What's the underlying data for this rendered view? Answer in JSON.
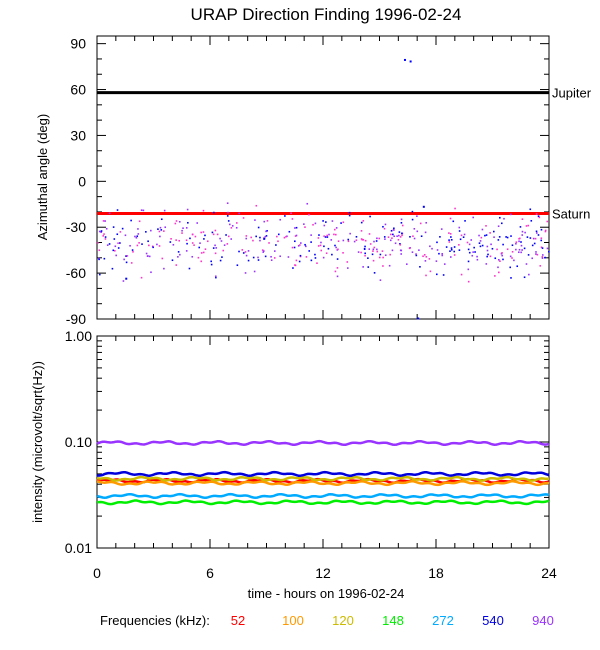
{
  "title": "URAP Direction Finding  1996-02-24",
  "xlabel": "time - hours on 1996-02-24",
  "legend_label": "Frequencies (kHz):",
  "chart_data": [
    {
      "type": "scatter",
      "ylabel": "Azimuthal angle (deg)",
      "xlim": [
        0,
        24
      ],
      "ylim": [
        -90,
        95
      ],
      "yticks": [
        90,
        60,
        30,
        0,
        -30,
        -60,
        -90
      ],
      "reference_lines": [
        {
          "name": "Jupiter",
          "y": 58,
          "color": "#000000"
        },
        {
          "name": "Saturn",
          "y": -21,
          "color": "#ff0000"
        }
      ],
      "notable_points": [
        {
          "x": 16.3,
          "y": 80
        },
        {
          "x": 16.6,
          "y": 79
        },
        {
          "x": 17.3,
          "y": -16
        },
        {
          "x": 1.5,
          "y": -63
        },
        {
          "x": 17.0,
          "y": -89
        }
      ],
      "scatter_band": {
        "y_min": -55,
        "y_max": -25,
        "mean": -40
      },
      "point_colors": [
        "#0000ff",
        "#9933ff",
        "#ff33cc"
      ]
    },
    {
      "type": "line",
      "ylabel": "intensity (microvolt/sqrt(Hz))",
      "xlim": [
        0,
        24
      ],
      "ylim": [
        0.01,
        1.0
      ],
      "yscale": "log",
      "yticks": [
        "1.00",
        "0.10",
        "0.01"
      ],
      "xticks": [
        0,
        6,
        12,
        18,
        24
      ],
      "series": [
        {
          "name": "52",
          "color": "#ff0000",
          "level": 0.043
        },
        {
          "name": "100",
          "color": "#ff9900",
          "level": 0.041
        },
        {
          "name": "120",
          "color": "#ccbb00",
          "level": 0.045
        },
        {
          "name": "148",
          "color": "#00ee00",
          "level": 0.027
        },
        {
          "name": "272",
          "color": "#00aaff",
          "level": 0.031
        },
        {
          "name": "540",
          "color": "#0000dd",
          "level": 0.05
        },
        {
          "name": "940",
          "color": "#9933ff",
          "level": 0.098
        }
      ]
    }
  ]
}
